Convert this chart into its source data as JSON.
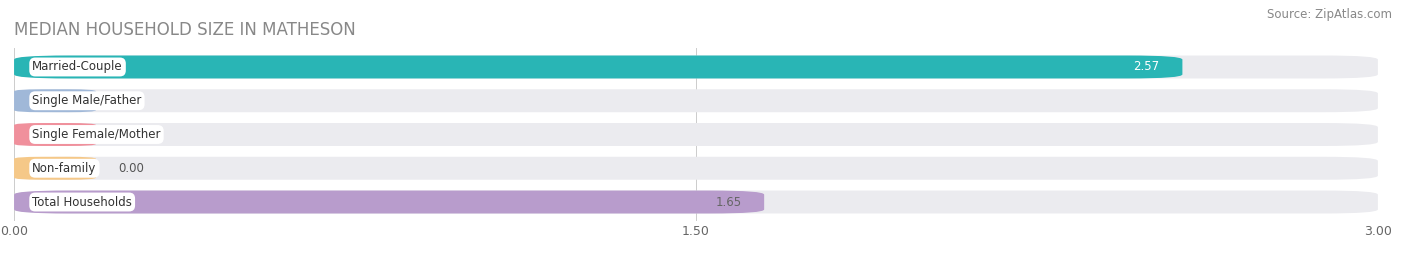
{
  "title": "MEDIAN HOUSEHOLD SIZE IN MATHESON",
  "source": "Source: ZipAtlas.com",
  "categories": [
    "Married-Couple",
    "Single Male/Father",
    "Single Female/Mother",
    "Non-family",
    "Total Households"
  ],
  "values": [
    2.57,
    0.0,
    0.0,
    0.0,
    1.65
  ],
  "bar_colors": [
    "#29b5b5",
    "#a0b8d8",
    "#f0909c",
    "#f5c888",
    "#b89ccc"
  ],
  "value_text_colors": [
    "#ffffff",
    "#666666",
    "#666666",
    "#666666",
    "#666666"
  ],
  "label_bg_color": "#ffffff",
  "background_color": "#ffffff",
  "bar_bg_color": "#e8e8ec",
  "row_bg_color": "#ebebef",
  "xlim": [
    0,
    3.0
  ],
  "xticks": [
    0.0,
    1.5,
    3.0
  ],
  "xtick_labels": [
    "0.00",
    "1.50",
    "3.00"
  ],
  "title_fontsize": 12,
  "source_fontsize": 8.5,
  "label_fontsize": 8.5,
  "value_fontsize": 8.5
}
